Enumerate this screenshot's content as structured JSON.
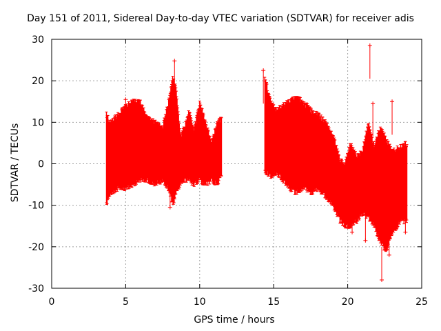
{
  "chart_data": {
    "type": "scatter",
    "title": "Day 151 of 2011, Sidereal Day-to-day VTEC variation (SDTVAR) for receiver adis",
    "xlabel": "GPS time / hours",
    "ylabel": "SDTVAR / TECUs",
    "xlim": [
      0,
      25
    ],
    "ylim": [
      -30,
      30
    ],
    "xticks": [
      0,
      5,
      10,
      15,
      20,
      25
    ],
    "yticks": [
      -30,
      -20,
      -10,
      0,
      10,
      20,
      30
    ],
    "grid": true,
    "marker": "plus",
    "color": "#ff0000",
    "series": [
      {
        "name": "SDTVAR",
        "envelope": {
          "x": [
            3.7,
            4.0,
            4.5,
            5.0,
            5.5,
            6.0,
            6.5,
            7.0,
            7.5,
            7.9,
            8.2,
            8.4,
            8.7,
            9.0,
            9.3,
            9.6,
            10.0,
            10.4,
            10.8,
            11.2,
            11.5
          ],
          "low": [
            -9,
            -6,
            -5,
            -5,
            -4,
            -3,
            -3,
            -4,
            -3,
            -5,
            -9,
            -6,
            -4,
            -3,
            -3,
            -4,
            -3,
            -4,
            -3,
            -4,
            -2
          ],
          "high": [
            11,
            9,
            11,
            13,
            14,
            14,
            10,
            9,
            8,
            14,
            20,
            17,
            6,
            8,
            12,
            7,
            14,
            9,
            4,
            9,
            10
          ]
        },
        "envelope2": {
          "x": [
            14.4,
            14.8,
            15.2,
            15.6,
            16.0,
            16.5,
            17.0,
            17.5,
            18.0,
            18.5,
            19.0,
            19.5,
            19.8,
            20.2,
            20.6,
            21.0,
            21.4,
            21.8,
            22.2,
            22.6,
            23.0,
            23.5,
            24.0
          ],
          "low": [
            -1,
            -2,
            -1,
            -3,
            -5,
            -6,
            -5,
            -6,
            -5,
            -7,
            -9,
            -13,
            -14,
            -14,
            -13,
            -11,
            -12,
            -14,
            -18,
            -20,
            -16,
            -13,
            -13
          ],
          "high": [
            20,
            14,
            12,
            13,
            14,
            15,
            14,
            12,
            11,
            9,
            6,
            0,
            -1,
            4,
            1,
            2,
            9,
            3,
            8,
            5,
            2,
            3,
            4
          ]
        },
        "spikes": [
          {
            "x": 5.0,
            "y": 15.5
          },
          {
            "x": 8.3,
            "y": 24.8
          },
          {
            "x": 8.0,
            "y": -10.5
          },
          {
            "x": 14.3,
            "y": 22.5
          },
          {
            "x": 21.5,
            "y": 28.5
          },
          {
            "x": 21.7,
            "y": 14.5
          },
          {
            "x": 21.2,
            "y": -18.5
          },
          {
            "x": 22.3,
            "y": -28.0
          },
          {
            "x": 22.8,
            "y": -22.0
          },
          {
            "x": 23.0,
            "y": 15.0
          },
          {
            "x": 23.9,
            "y": -16.5
          },
          {
            "x": 20.3,
            "y": -16.5
          }
        ]
      }
    ]
  }
}
